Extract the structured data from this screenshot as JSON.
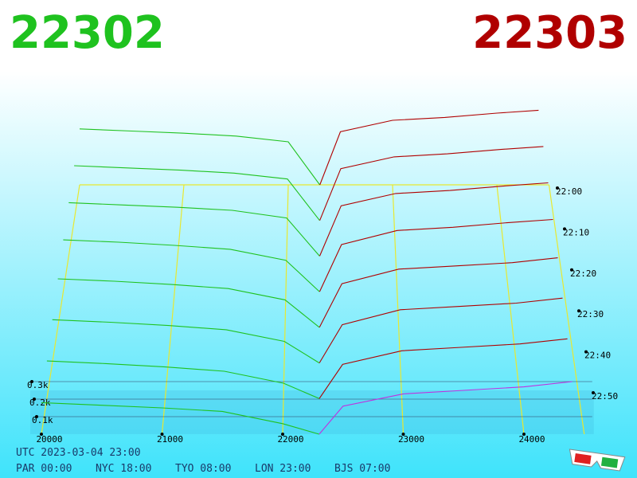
{
  "chart_data": {
    "type": "depth3d",
    "bid_title": "22302",
    "ask_title": "22303",
    "bid_color": "#1fc21f",
    "ask_color": "#b00000",
    "bid_prices": [
      20000,
      20500,
      21000,
      21500,
      22000,
      22302
    ],
    "ask_prices": [
      22303,
      22500,
      23000,
      23500,
      24000,
      24400
    ],
    "layers": [
      {
        "bids": [
          180,
          165,
          150,
          130,
          60,
          0
        ],
        "asks": [
          0,
          160,
          230,
          250,
          270,
          300
        ]
      },
      {
        "bids": [
          220,
          205,
          185,
          160,
          90,
          0
        ],
        "asks": [
          0,
          200,
          280,
          300,
          320,
          350
        ]
      },
      {
        "bids": [
          260,
          245,
          225,
          200,
          130,
          0
        ],
        "asks": [
          0,
          230,
          320,
          340,
          360,
          390
        ]
      },
      {
        "bids": [
          300,
          285,
          265,
          240,
          170,
          0
        ],
        "asks": [
          0,
          270,
          360,
          380,
          400,
          430
        ]
      },
      {
        "bids": [
          330,
          315,
          295,
          270,
          200,
          0
        ],
        "asks": [
          0,
          300,
          390,
          410,
          440,
          460
        ]
      },
      {
        "bids": [
          350,
          335,
          320,
          300,
          250,
          0
        ],
        "asks": [
          0,
          330,
          410,
          430,
          460,
          480
        ]
      },
      {
        "bids": [
          370,
          355,
          340,
          320,
          280,
          0
        ],
        "asks": [
          0,
          350,
          430,
          450,
          480,
          500
        ]
      },
      {
        "bids": [
          390,
          375,
          360,
          340,
          300,
          0
        ],
        "asks": [
          0,
          370,
          450,
          470,
          500,
          520
        ]
      }
    ],
    "xlim": [
      20000,
      24500
    ],
    "xticks": [
      20000,
      21000,
      22000,
      23000,
      24000
    ],
    "zticks": [
      {
        "value": 100,
        "label": "0.1k"
      },
      {
        "value": 200,
        "label": "0.2k"
      },
      {
        "value": 300,
        "label": "0.3k"
      }
    ],
    "time_ticks": [
      "22:00",
      "22:10",
      "22:20",
      "22:30",
      "22:40",
      "22:50"
    ],
    "clock_title": "UTC 2023-03-04 23:00",
    "clocks": [
      "PAR 00:00",
      "NYC 18:00",
      "TYO 08:00",
      "LON 23:00",
      "BJS 07:00"
    ]
  }
}
